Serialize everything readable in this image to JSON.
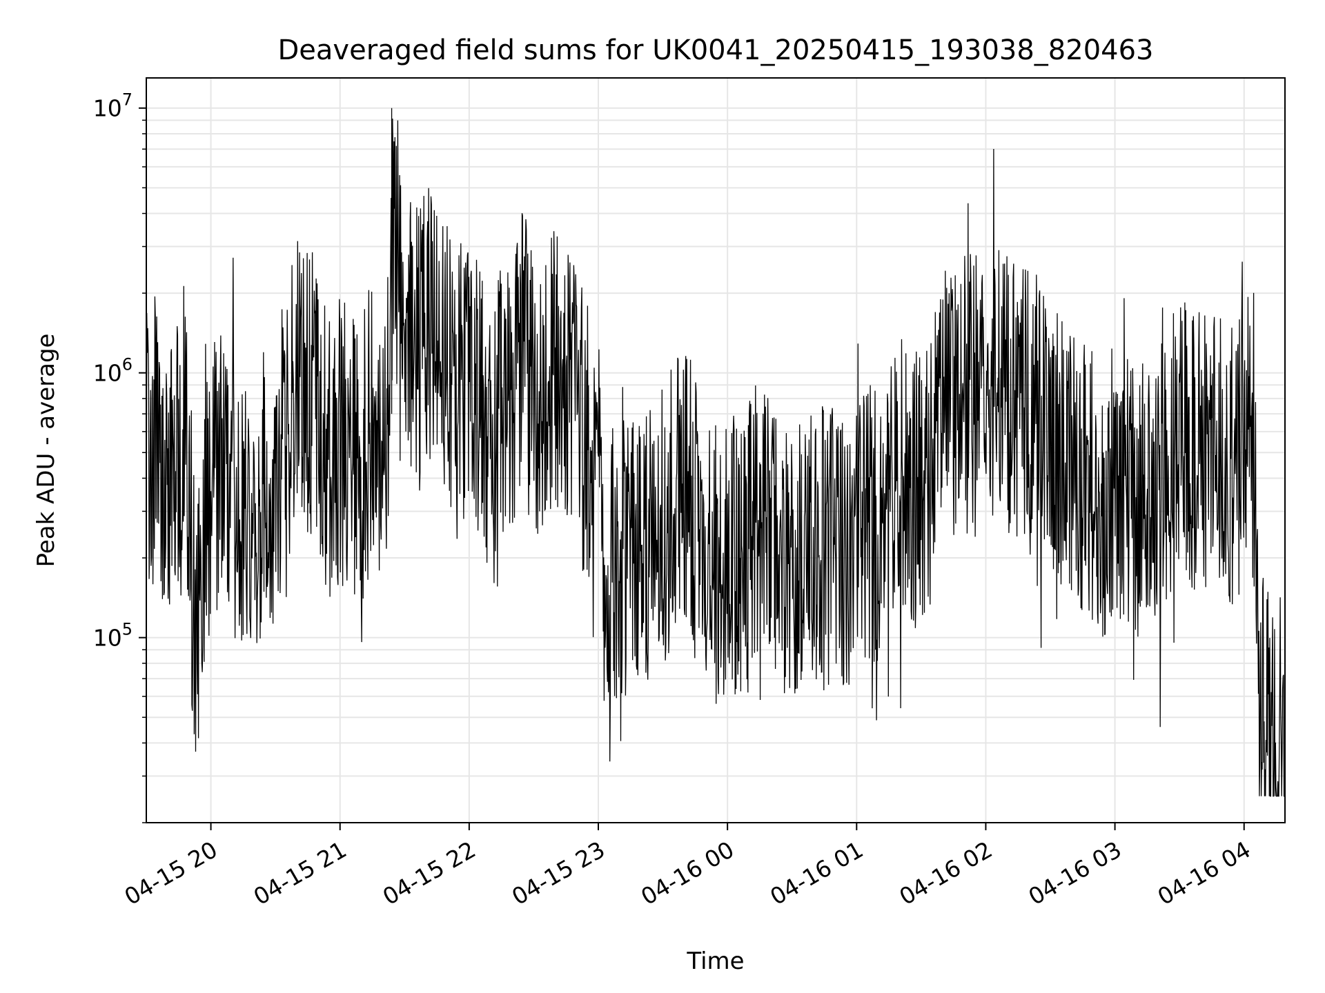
{
  "chart_data": {
    "type": "line",
    "title": "Deaveraged field sums for UK0041_20250415_193038_820463",
    "xlabel": "Time",
    "ylabel": "Peak ADU - average",
    "xlim": [
      "2025-04-15 19:30",
      "2025-04-16 04:19"
    ],
    "ylim": [
      20000,
      13000000
    ],
    "yscale": "log",
    "grid": true,
    "line_color": "#000000",
    "x_ticks": [
      {
        "t": "2025-04-15 20:00",
        "label": "04-15 20"
      },
      {
        "t": "2025-04-15 21:00",
        "label": "04-15 21"
      },
      {
        "t": "2025-04-15 22:00",
        "label": "04-15 22"
      },
      {
        "t": "2025-04-15 23:00",
        "label": "04-15 23"
      },
      {
        "t": "2025-04-16 00:00",
        "label": "04-16 00"
      },
      {
        "t": "2025-04-16 01:00",
        "label": "04-16 01"
      },
      {
        "t": "2025-04-16 02:00",
        "label": "04-16 02"
      },
      {
        "t": "2025-04-16 03:00",
        "label": "04-16 03"
      },
      {
        "t": "2025-04-16 04:00",
        "label": "04-16 04"
      }
    ],
    "y_ticks": [
      {
        "value": 100000,
        "base": "10",
        "exp": "5"
      },
      {
        "value": 1000000,
        "base": "10",
        "exp": "6"
      },
      {
        "value": 10000000,
        "base": "10",
        "exp": "7"
      }
    ],
    "series": [
      {
        "x": [
          "2025-04-15 19:30",
          "2025-04-15 19:36",
          "2025-04-15 19:42",
          "2025-04-15 19:45",
          "2025-04-15 19:48",
          "2025-04-15 19:50",
          "2025-04-15 19:52",
          "2025-04-15 19:54",
          "2025-04-15 19:57",
          "2025-04-15 20:00",
          "2025-04-15 20:05",
          "2025-04-15 20:10",
          "2025-04-15 20:15",
          "2025-04-15 20:20",
          "2025-04-15 20:25",
          "2025-04-15 20:30",
          "2025-04-15 20:35",
          "2025-04-15 20:40",
          "2025-04-15 20:45",
          "2025-04-15 20:50",
          "2025-04-15 20:55",
          "2025-04-15 21:00",
          "2025-04-15 21:10",
          "2025-04-15 21:15",
          "2025-04-15 21:20",
          "2025-04-15 21:23",
          "2025-04-15 21:24",
          "2025-04-15 21:30",
          "2025-04-15 21:40",
          "2025-04-15 21:50",
          "2025-04-15 22:00",
          "2025-04-15 22:10",
          "2025-04-15 22:20",
          "2025-04-15 22:25",
          "2025-04-15 22:30",
          "2025-04-15 22:40",
          "2025-04-15 22:50",
          "2025-04-15 23:00",
          "2025-04-15 23:02",
          "2025-04-15 23:10",
          "2025-04-15 23:20",
          "2025-04-15 23:30",
          "2025-04-15 23:40",
          "2025-04-15 23:50",
          "2025-04-16 00:00",
          "2025-04-16 00:10",
          "2025-04-16 00:20",
          "2025-04-16 00:30",
          "2025-04-16 00:40",
          "2025-04-16 00:50",
          "2025-04-16 00:55",
          "2025-04-16 01:00",
          "2025-04-16 01:10",
          "2025-04-16 01:20",
          "2025-04-16 01:30",
          "2025-04-16 01:40",
          "2025-04-16 01:50",
          "2025-04-16 02:00",
          "2025-04-16 02:05",
          "2025-04-16 02:10",
          "2025-04-16 02:20",
          "2025-04-16 02:30",
          "2025-04-16 02:40",
          "2025-04-16 02:50",
          "2025-04-16 03:00",
          "2025-04-16 03:10",
          "2025-04-16 03:20",
          "2025-04-16 03:30",
          "2025-04-16 03:40",
          "2025-04-16 03:50",
          "2025-04-16 04:00",
          "2025-04-16 04:05",
          "2025-04-16 04:07",
          "2025-04-16 04:10",
          "2025-04-16 04:14",
          "2025-04-16 04:19"
        ],
        "y": [
          500000,
          480000,
          430000,
          520000,
          700000,
          280000,
          150000,
          90000,
          400000,
          300000,
          450000,
          350000,
          300000,
          250000,
          400000,
          300000,
          500000,
          1000000,
          800000,
          700000,
          500000,
          550000,
          450000,
          700000,
          600000,
          900000,
          3000000,
          1200000,
          1500000,
          1100000,
          900000,
          600000,
          900000,
          1500000,
          700000,
          1000000,
          700000,
          400000,
          150000,
          200000,
          180000,
          250000,
          400000,
          200000,
          180000,
          250000,
          300000,
          180000,
          200000,
          250000,
          180000,
          300000,
          250000,
          400000,
          350000,
          600000,
          800000,
          900000,
          1000000,
          800000,
          700000,
          600000,
          400000,
          350000,
          350000,
          300000,
          400000,
          600000,
          500000,
          450000,
          500000,
          400000,
          70000,
          45000,
          40000,
          42000
        ]
      }
    ]
  }
}
